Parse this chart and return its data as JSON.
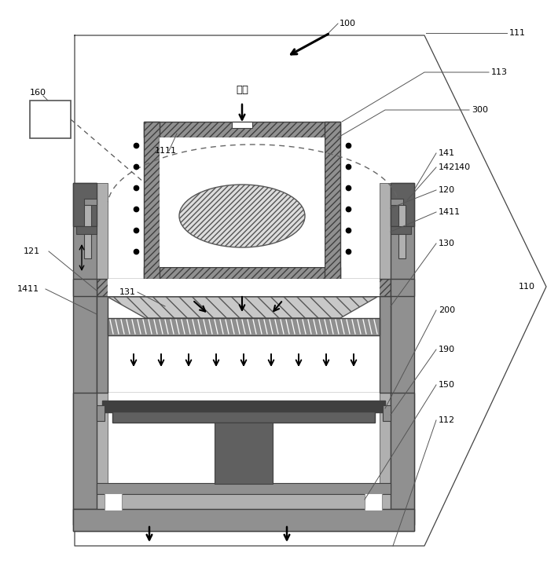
{
  "bg_color": "#ffffff",
  "c_dark": "#606060",
  "c_mid": "#909090",
  "c_light": "#b8b8b8",
  "c_white": "#ffffff",
  "c_black": "#000000",
  "c_hatch": "#808080"
}
